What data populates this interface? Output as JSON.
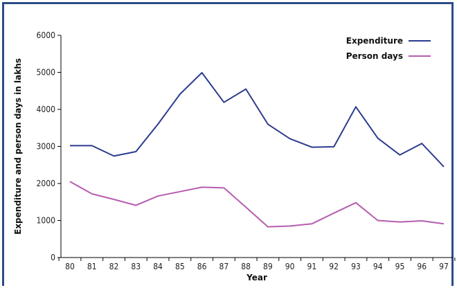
{
  "chart_data": {
    "type": "line",
    "title": "",
    "xlabel": "Year",
    "ylabel": "Expenditure and person days in lakhs",
    "categories": [
      "80",
      "81",
      "82",
      "83",
      "84",
      "85",
      "86",
      "87",
      "88",
      "89",
      "90",
      "91",
      "92",
      "93",
      "94",
      "95",
      "96",
      "97"
    ],
    "ylim": [
      0,
      6000
    ],
    "yticks": [
      0,
      1000,
      2000,
      3000,
      4000,
      5000,
      6000
    ],
    "grid": false,
    "legend_position": "top-right",
    "series": [
      {
        "name": "Expenditure",
        "color": "#2b3b8f",
        "values": [
          3020,
          3020,
          2740,
          2860,
          3600,
          4410,
          4990,
          4190,
          4550,
          3600,
          3210,
          2980,
          2990,
          4070,
          3220,
          2770,
          3080,
          2450
        ]
      },
      {
        "name": "Person days",
        "color": "#b65cb0",
        "values": [
          2050,
          1720,
          1570,
          1410,
          1660,
          1780,
          1900,
          1880,
          1360,
          830,
          850,
          910,
          1200,
          1480,
          1000,
          960,
          990,
          910
        ]
      }
    ]
  }
}
